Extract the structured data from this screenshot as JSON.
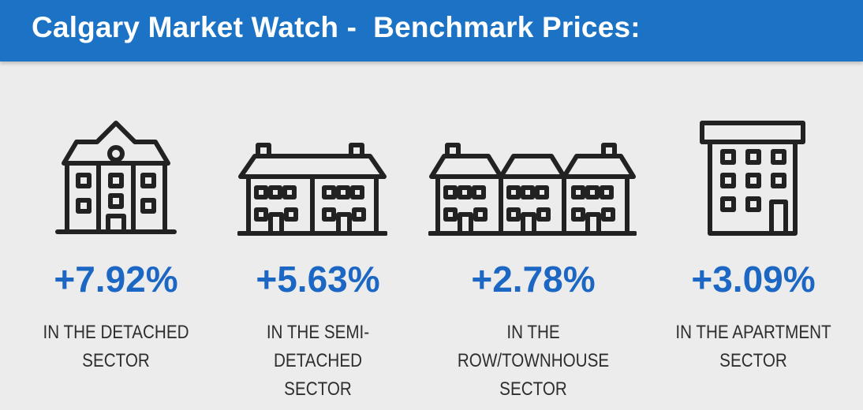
{
  "header": {
    "title": "Calgary Market Watch -  Benchmark Prices:"
  },
  "sectors": [
    {
      "icon": "detached-house-icon",
      "percent": "+7.92%",
      "label_line1": "IN THE DETACHED",
      "label_line2": "SECTOR"
    },
    {
      "icon": "semi-detached-house-icon",
      "percent": "+5.63%",
      "label_line1": "IN THE SEMI-DETACHED",
      "label_line2": "SECTOR"
    },
    {
      "icon": "townhouse-icon",
      "percent": "+2.78%",
      "label_line1": "IN THE ROW/TOWNHOUSE",
      "label_line2": "SECTOR"
    },
    {
      "icon": "apartment-building-icon",
      "percent": "+3.09%",
      "label_line1": "IN THE APARTMENT",
      "label_line2": "SECTOR"
    }
  ],
  "colors": {
    "banner": "#1c72c4",
    "percent": "#1c67c4",
    "background": "#ececec"
  }
}
